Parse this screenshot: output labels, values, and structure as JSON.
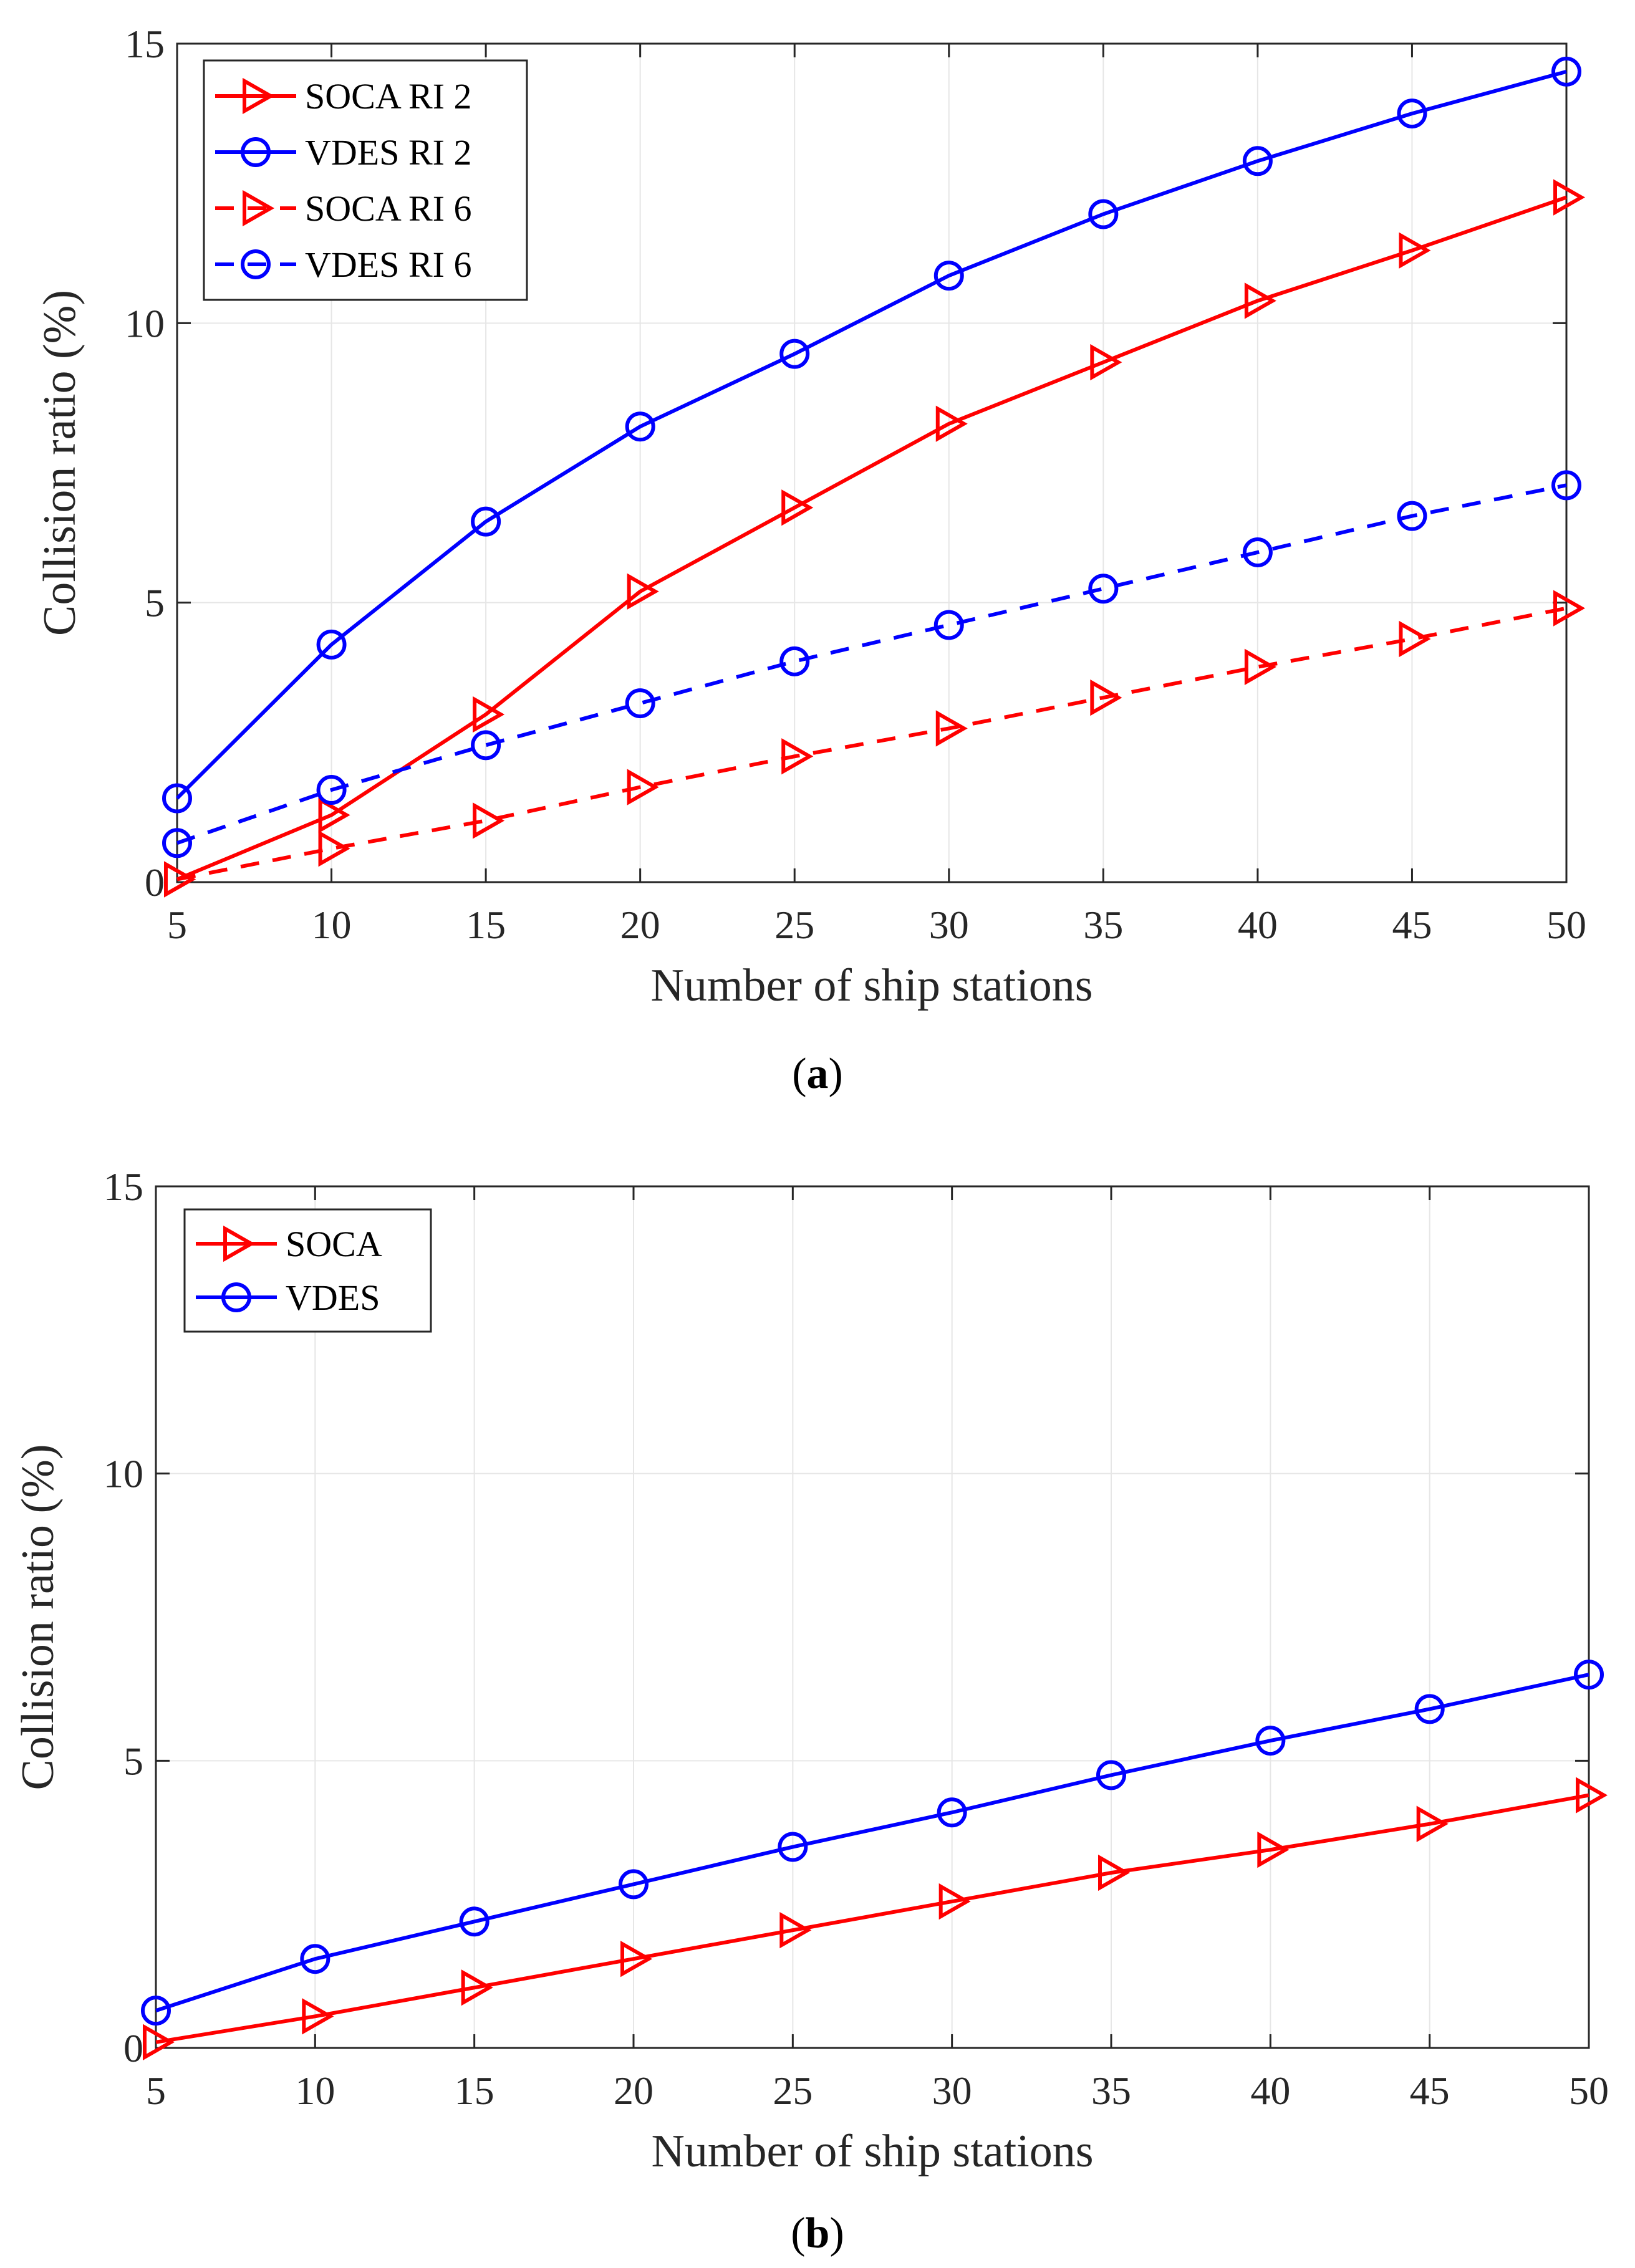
{
  "charts": [
    {
      "id": "a",
      "caption": {
        "open": "(",
        "letter": "a",
        "close": ")"
      },
      "chart_data": {
        "type": "line",
        "xlabel": "Number of ship stations",
        "ylabel": "Collision ratio (%)",
        "xlim": [
          5,
          50
        ],
        "ylim": [
          0,
          15
        ],
        "xticks": [
          5,
          10,
          15,
          20,
          25,
          30,
          35,
          40,
          45,
          50
        ],
        "yticks": [
          0,
          5,
          10,
          15
        ],
        "grid": true,
        "legend_position": "top-left",
        "x": [
          5,
          10,
          15,
          20,
          25,
          30,
          35,
          40,
          45,
          50
        ],
        "series": [
          {
            "name": "SOCA RI 2",
            "color": "#ff0000",
            "marker": "triangle-right",
            "dash": "solid",
            "values": [
              0.05,
              1.2,
              3.0,
              5.2,
              6.7,
              8.2,
              9.3,
              10.4,
              11.3,
              12.25
            ]
          },
          {
            "name": "VDES RI 2",
            "color": "#0000ff",
            "marker": "circle",
            "dash": "solid",
            "values": [
              1.5,
              4.25,
              6.45,
              8.15,
              9.45,
              10.85,
              11.95,
              12.9,
              13.75,
              14.5
            ]
          },
          {
            "name": "SOCA RI 6",
            "color": "#ff0000",
            "marker": "triangle-right",
            "dash": "dashed",
            "values": [
              0.05,
              0.6,
              1.1,
              1.7,
              2.25,
              2.75,
              3.3,
              3.85,
              4.35,
              4.9
            ]
          },
          {
            "name": "VDES RI 6",
            "color": "#0000ff",
            "marker": "circle",
            "dash": "dashed",
            "values": [
              0.7,
              1.65,
              2.45,
              3.2,
              3.95,
              4.6,
              5.25,
              5.9,
              6.55,
              7.1
            ]
          }
        ]
      }
    },
    {
      "id": "b",
      "caption": {
        "open": "(",
        "letter": "b",
        "close": ")"
      },
      "chart_data": {
        "type": "line",
        "xlabel": "Number of ship stations",
        "ylabel": "Collision ratio (%)",
        "xlim": [
          5,
          50
        ],
        "ylim": [
          0,
          15
        ],
        "xticks": [
          5,
          10,
          15,
          20,
          25,
          30,
          35,
          40,
          45,
          50
        ],
        "yticks": [
          0,
          5,
          10,
          15
        ],
        "grid": true,
        "legend_position": "top-left",
        "x": [
          5,
          10,
          15,
          20,
          25,
          30,
          35,
          40,
          45,
          50
        ],
        "series": [
          {
            "name": "SOCA",
            "color": "#ff0000",
            "marker": "triangle-right",
            "dash": "solid",
            "values": [
              0.1,
              0.55,
              1.05,
              1.55,
              2.05,
              2.55,
              3.05,
              3.45,
              3.9,
              4.4
            ]
          },
          {
            "name": "VDES",
            "color": "#0000ff",
            "marker": "circle",
            "dash": "solid",
            "values": [
              0.65,
              1.55,
              2.2,
              2.85,
              3.5,
              4.1,
              4.75,
              5.35,
              5.9,
              6.5
            ]
          }
        ]
      }
    }
  ]
}
